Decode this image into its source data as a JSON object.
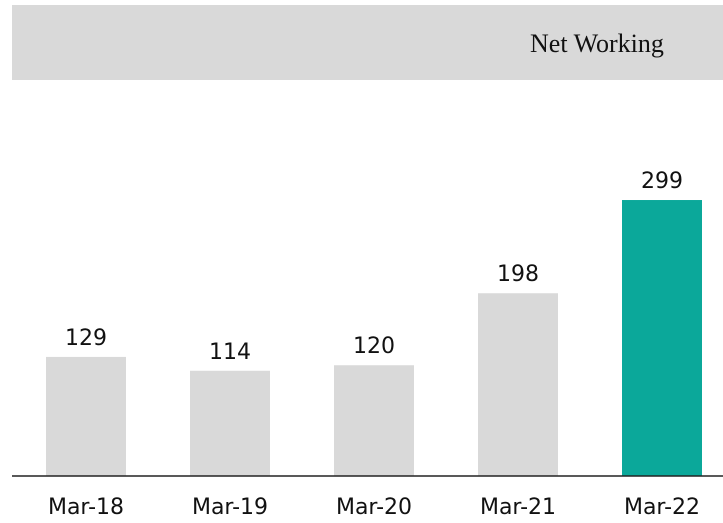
{
  "chart_data": {
    "type": "bar",
    "title": "Net Working",
    "categories": [
      "Mar-18",
      "Mar-19",
      "Mar-20",
      "Mar-21",
      "Mar-22"
    ],
    "values": [
      129,
      114,
      120,
      198,
      299
    ],
    "colors": [
      "#d9d9d9",
      "#d9d9d9",
      "#d9d9d9",
      "#d9d9d9",
      "#0ba89a"
    ],
    "grid": false
  }
}
